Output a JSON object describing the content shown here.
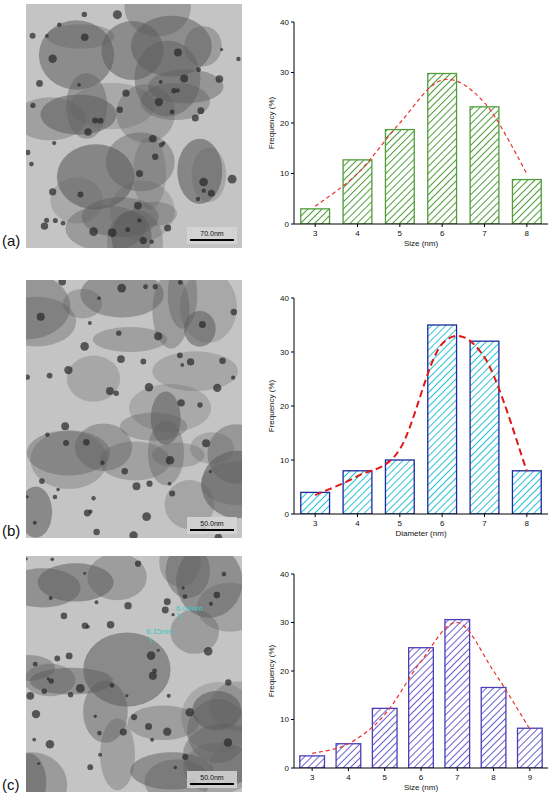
{
  "panels": [
    {
      "label": "(a)",
      "scale_bar": "70.0nm",
      "annotations": []
    },
    {
      "label": "(b)",
      "scale_bar": "50.0nm",
      "annotations": []
    },
    {
      "label": "(c)",
      "scale_bar": "50.0nm",
      "annotations": [
        "6.04nm",
        "6.15nm"
      ]
    }
  ],
  "chart_data": [
    {
      "type": "bar",
      "x_label": "Size (nm)",
      "y_label": "Frequency (%)",
      "categories": [
        "3",
        "4",
        "5",
        "6",
        "7",
        "8"
      ],
      "ylim": [
        0,
        40
      ],
      "yticks": [
        0,
        10,
        20,
        30,
        40
      ],
      "series": [
        {
          "type": "bar",
          "color": "#4f9e3a",
          "values": [
            3,
            12.7,
            18.7,
            29.8,
            23.2,
            8.8
          ]
        },
        {
          "type": "line",
          "color": "#e8332e",
          "line_style": "dashed",
          "values": [
            3.5,
            10,
            20,
            28.5,
            24,
            10
          ]
        }
      ]
    },
    {
      "type": "bar",
      "x_label": "Diameter (nm)",
      "y_label": "Frequency (%)",
      "categories": [
        "3",
        "4",
        "5",
        "6",
        "7",
        "8"
      ],
      "ylim": [
        0,
        40
      ],
      "yticks": [
        0,
        10,
        20,
        30,
        40
      ],
      "series": [
        {
          "type": "bar",
          "color": "#28c4d8",
          "values": [
            4,
            8,
            10,
            35,
            32,
            8
          ]
        },
        {
          "type": "line",
          "color": "#e01818",
          "line_style": "dashed",
          "values": [
            3.5,
            7,
            12,
            31.5,
            29,
            8
          ]
        }
      ]
    },
    {
      "type": "bar",
      "x_label": "Size (nm)",
      "y_label": "Frequency (%)",
      "categories": [
        "3",
        "4",
        "5",
        "6",
        "7",
        "8",
        "9"
      ],
      "ylim": [
        0,
        40
      ],
      "yticks": [
        0,
        10,
        20,
        30,
        40
      ],
      "series": [
        {
          "type": "bar",
          "color": "#6a5fd0",
          "values": [
            2.5,
            5,
            12.3,
            24.8,
            30.6,
            16.6,
            8.2
          ]
        },
        {
          "type": "line",
          "color": "#e8332e",
          "line_style": "dashed",
          "values": [
            3,
            5,
            11,
            22,
            30,
            20,
            8
          ]
        }
      ]
    }
  ]
}
